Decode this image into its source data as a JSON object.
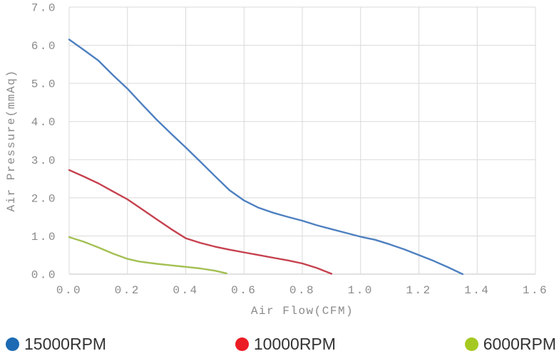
{
  "page": {
    "background": "#ffffff"
  },
  "colors": {
    "grid": "#d9d9d9",
    "axis_line": "#c4c4c4",
    "axis_text": "#8a8a8a",
    "legend_text": "#333333"
  },
  "chart_data": {
    "type": "line",
    "title": "",
    "xlabel": "Air Flow(CFM)",
    "ylabel": "Air Pressure(mmAq)",
    "xlim": [
      0.0,
      1.6
    ],
    "ylim": [
      0.0,
      7.0
    ],
    "x_ticks": [
      "0.0",
      "0.2",
      "0.4",
      "0.6",
      "0.8",
      "1.0",
      "1.2",
      "1.4",
      "1.6"
    ],
    "y_ticks": [
      "0.0",
      "1.0",
      "2.0",
      "3.0",
      "4.0",
      "5.0",
      "6.0",
      "7.0"
    ],
    "grid": true,
    "legend_position": "bottom",
    "series": [
      {
        "name": "15000RPM",
        "line_color": "#4e80c0",
        "legend_dot_color": "#1b6ab3",
        "points": [
          [
            0.0,
            6.15
          ],
          [
            0.05,
            5.88
          ],
          [
            0.1,
            5.6
          ],
          [
            0.15,
            5.22
          ],
          [
            0.2,
            4.86
          ],
          [
            0.25,
            4.45
          ],
          [
            0.3,
            4.05
          ],
          [
            0.35,
            3.68
          ],
          [
            0.4,
            3.32
          ],
          [
            0.45,
            2.95
          ],
          [
            0.5,
            2.57
          ],
          [
            0.55,
            2.2
          ],
          [
            0.6,
            1.93
          ],
          [
            0.65,
            1.74
          ],
          [
            0.7,
            1.61
          ],
          [
            0.75,
            1.5
          ],
          [
            0.8,
            1.4
          ],
          [
            0.85,
            1.28
          ],
          [
            0.9,
            1.18
          ],
          [
            0.95,
            1.08
          ],
          [
            1.0,
            0.98
          ],
          [
            1.05,
            0.9
          ],
          [
            1.1,
            0.78
          ],
          [
            1.15,
            0.65
          ],
          [
            1.2,
            0.5
          ],
          [
            1.25,
            0.35
          ],
          [
            1.3,
            0.18
          ],
          [
            1.35,
            0.0
          ]
        ]
      },
      {
        "name": "10000RPM",
        "line_color": "#c6414f",
        "legend_dot_color": "#ec1c24",
        "points": [
          [
            0.0,
            2.73
          ],
          [
            0.05,
            2.56
          ],
          [
            0.1,
            2.38
          ],
          [
            0.15,
            2.17
          ],
          [
            0.2,
            1.96
          ],
          [
            0.25,
            1.7
          ],
          [
            0.3,
            1.44
          ],
          [
            0.35,
            1.18
          ],
          [
            0.4,
            0.94
          ],
          [
            0.45,
            0.82
          ],
          [
            0.5,
            0.72
          ],
          [
            0.55,
            0.64
          ],
          [
            0.6,
            0.57
          ],
          [
            0.65,
            0.5
          ],
          [
            0.7,
            0.43
          ],
          [
            0.75,
            0.36
          ],
          [
            0.8,
            0.28
          ],
          [
            0.85,
            0.16
          ],
          [
            0.9,
            0.01
          ]
        ]
      },
      {
        "name": "6000RPM",
        "line_color": "#a3c052",
        "legend_dot_color": "#a5c921",
        "points": [
          [
            0.0,
            0.97
          ],
          [
            0.05,
            0.85
          ],
          [
            0.1,
            0.7
          ],
          [
            0.15,
            0.54
          ],
          [
            0.2,
            0.4
          ],
          [
            0.24,
            0.33
          ],
          [
            0.3,
            0.27
          ],
          [
            0.35,
            0.23
          ],
          [
            0.4,
            0.19
          ],
          [
            0.45,
            0.15
          ],
          [
            0.5,
            0.09
          ],
          [
            0.54,
            0.02
          ]
        ]
      }
    ]
  }
}
